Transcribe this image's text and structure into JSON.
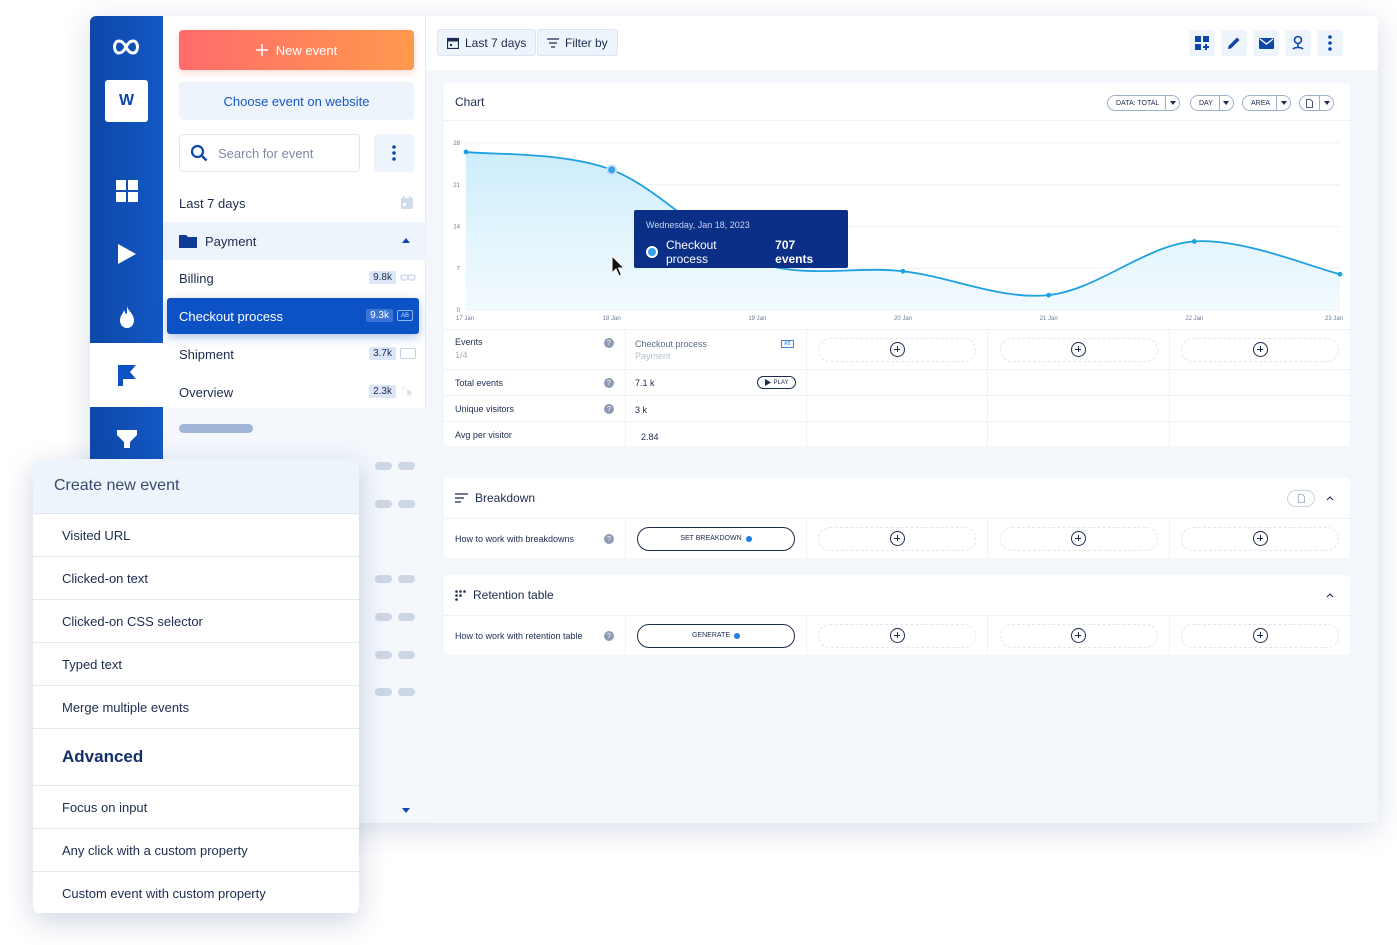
{
  "sidebar": {
    "workspace_initial": "W"
  },
  "event_panel": {
    "new_event_label": "New event",
    "choose_event_label": "Choose event on website",
    "search_placeholder": "Search for event",
    "date_range_label": "Last 7 days",
    "folder_label": "Payment",
    "events": [
      {
        "label": "Billing",
        "count": "9.8k"
      },
      {
        "label": "Checkout process",
        "count": "9.3k",
        "tag": "AB"
      },
      {
        "label": "Shipment",
        "count": "3.7k"
      },
      {
        "label": "Overview",
        "count": "2.3k"
      }
    ]
  },
  "toolbar": {
    "date_range_label": "Last 7 days",
    "filter_label": "Filter by"
  },
  "chart_card": {
    "title": "Chart",
    "data_select": "DATA: TOTAL",
    "interval_select": "DAY",
    "type_select": "AREA"
  },
  "tooltip": {
    "date": "Wednesday, Jan 18, 2023",
    "series": "Checkout process",
    "value": "707 events"
  },
  "chart_data": {
    "type": "area",
    "x": [
      "17 Jan",
      "18 Jan",
      "19 Jan",
      "20 Jan",
      "21 Jan",
      "22 Jan",
      "23 Jan"
    ],
    "series": [
      {
        "name": "Checkout process",
        "values": [
          26.5,
          23.5,
          8,
          6.5,
          2.5,
          11.5,
          6
        ]
      }
    ],
    "yticks": [
      "28",
      "21",
      "14",
      "7",
      "0"
    ],
    "ylim": [
      0,
      28
    ],
    "grid": true,
    "color": "#1da1e0"
  },
  "metrics_table": {
    "events_label": "Events",
    "events_count": "1/4",
    "event_name": "Checkout process",
    "event_folder": "Payment",
    "event_tag": "AB",
    "play_label": "PLAY",
    "rows": [
      {
        "label": "Total events",
        "value": "7.1 k"
      },
      {
        "label": "Unique visitors",
        "value": "3 k"
      },
      {
        "label": "Avg per visitor",
        "value": "2.84"
      }
    ]
  },
  "breakdown": {
    "title": "Breakdown",
    "row_label": "How to work with breakdowns",
    "button_label": "SET BREAKDOWN"
  },
  "retention": {
    "title": "Retention table",
    "row_label": "How to work with retention table",
    "button_label": "GENERATE"
  },
  "create_menu": {
    "title": "Create new event",
    "items": [
      "Visited URL",
      "Clicked-on text",
      "Clicked-on CSS selector",
      "Typed text",
      "Merge multiple events"
    ],
    "advanced_label": "Advanced",
    "advanced_items": [
      "Focus on input",
      "Any click with a custom property",
      "Custom event with custom property"
    ]
  }
}
